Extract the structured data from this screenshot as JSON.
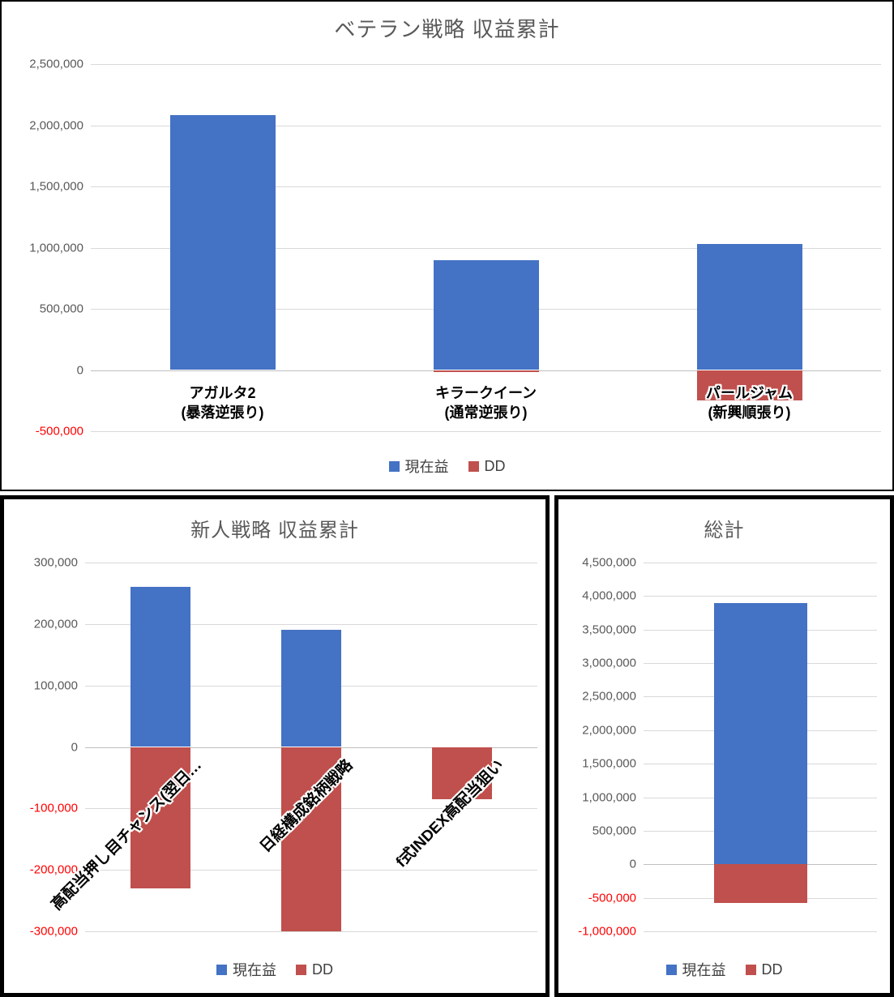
{
  "colors": {
    "series_current_profit": "#4472C4",
    "series_dd": "#C0504D",
    "axis_text": "#595959",
    "axis_text_negative": "#FF0000",
    "gridline": "#D9D9D9",
    "zero_line": "#BFBFBF",
    "title_text": "#595959"
  },
  "chart_data": [
    {
      "id": "veteran",
      "type": "bar",
      "title": "ベテラン戦略 収益累計",
      "categories": [
        "アガルタ2\n(暴落逆張り)",
        "キラークイーン\n(通常逆張り)",
        "パールジャム\n(新興順張り)"
      ],
      "series": [
        {
          "name": "現在益",
          "values": [
            2080000,
            900000,
            1030000
          ]
        },
        {
          "name": "DD",
          "values": [
            0,
            -15000,
            -250000
          ]
        }
      ],
      "ylim": [
        -500000,
        2500000
      ],
      "ystep": 500000,
      "grid": true,
      "legend_position": "bottom",
      "category_label_rotation": 0
    },
    {
      "id": "rookie",
      "type": "bar",
      "title": "新人戦略 収益累計",
      "categories": [
        "高配当押し目チャンス(翌日…",
        "日経構成銘柄戦略",
        "f式INDEX高配当狙い"
      ],
      "series": [
        {
          "name": "現在益",
          "values": [
            260000,
            190000,
            0
          ]
        },
        {
          "name": "DD",
          "values": [
            -230000,
            -300000,
            -85000
          ]
        }
      ],
      "ylim": [
        -300000,
        300000
      ],
      "ystep": 100000,
      "grid": true,
      "legend_position": "bottom",
      "category_label_rotation": 45
    },
    {
      "id": "total",
      "type": "bar",
      "title": "総計",
      "categories": [
        ""
      ],
      "series": [
        {
          "name": "現在益",
          "values": [
            3890000
          ]
        },
        {
          "name": "DD",
          "values": [
            -580000
          ]
        }
      ],
      "ylim": [
        -1000000,
        4500000
      ],
      "ystep": 500000,
      "grid": true,
      "legend_position": "bottom",
      "category_label_rotation": 0
    }
  ]
}
